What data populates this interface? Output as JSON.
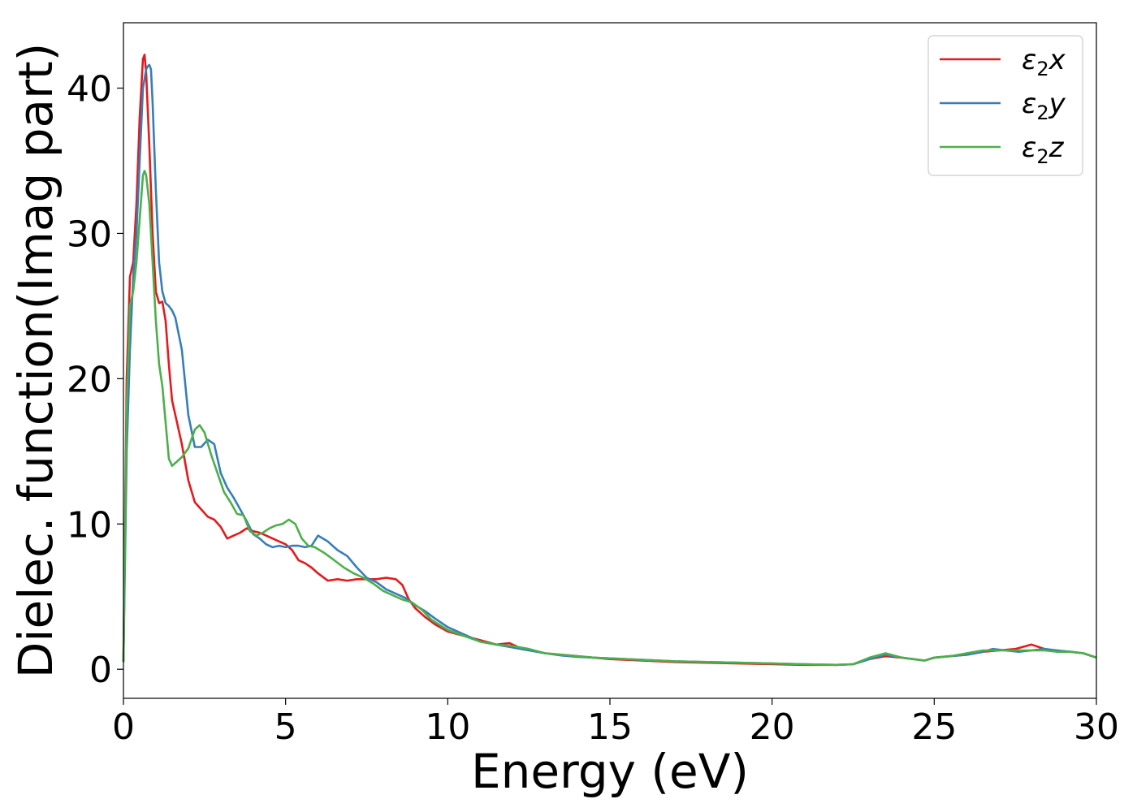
{
  "chart_data": {
    "type": "line",
    "xlabel": "Energy (eV)",
    "ylabel": "Dielec. function(Imag part)",
    "xlim": [
      0,
      30
    ],
    "ylim": [
      -2,
      44.5
    ],
    "xticks": [
      0,
      5,
      10,
      15,
      20,
      25,
      30
    ],
    "yticks": [
      0,
      10,
      20,
      30,
      40
    ],
    "grid": false,
    "legend_position": "top-right",
    "series": [
      {
        "name": "ε₂x",
        "legend": {
          "base": "ε",
          "sub": "2",
          "var": "x"
        },
        "color": "#e41a1c",
        "x": [
          0,
          0.1,
          0.2,
          0.3,
          0.4,
          0.5,
          0.6,
          0.65,
          0.7,
          0.8,
          0.9,
          1.0,
          1.1,
          1.2,
          1.3,
          1.4,
          1.5,
          1.6,
          1.8,
          2.0,
          2.2,
          2.4,
          2.6,
          2.8,
          3.0,
          3.2,
          3.4,
          3.6,
          3.8,
          4.0,
          4.2,
          4.4,
          4.6,
          4.8,
          5.0,
          5.2,
          5.4,
          5.6,
          5.8,
          6.0,
          6.3,
          6.6,
          6.9,
          7.2,
          7.5,
          7.8,
          8.1,
          8.4,
          8.6,
          8.8,
          9.0,
          9.3,
          9.6,
          10.0,
          10.5,
          11.0,
          11.5,
          11.9,
          12.2,
          12.6,
          13.0,
          13.5,
          14.0,
          14.5,
          15.0,
          16.0,
          17.0,
          18.0,
          19.0,
          20.0,
          21.0,
          22.0,
          22.5,
          23.0,
          23.5,
          24.0,
          24.7,
          25.0,
          25.5,
          26.0,
          26.5,
          27.0,
          27.5,
          28.0,
          28.4,
          28.8,
          29.2,
          29.6,
          30.0
        ],
        "values": [
          0.5,
          20,
          27,
          28,
          32,
          38,
          42,
          42.3,
          41,
          36,
          30,
          26,
          25.2,
          25.3,
          24,
          21,
          18.5,
          17.5,
          15.5,
          13,
          11.5,
          11,
          10.5,
          10.3,
          9.8,
          9.0,
          9.2,
          9.4,
          9.7,
          9.5,
          9.4,
          9.2,
          9.0,
          8.8,
          8.6,
          8.2,
          7.5,
          7.3,
          7.0,
          6.6,
          6.1,
          6.2,
          6.1,
          6.2,
          6.2,
          6.2,
          6.3,
          6.2,
          5.8,
          4.8,
          4.2,
          3.6,
          3.1,
          2.6,
          2.3,
          2.0,
          1.7,
          1.8,
          1.5,
          1.3,
          1.1,
          1.0,
          0.9,
          0.8,
          0.7,
          0.6,
          0.5,
          0.45,
          0.4,
          0.35,
          0.3,
          0.3,
          0.35,
          0.7,
          0.9,
          0.8,
          0.6,
          0.8,
          0.9,
          1.0,
          1.2,
          1.3,
          1.4,
          1.7,
          1.4,
          1.2,
          1.2,
          1.1,
          0.8
        ]
      },
      {
        "name": "ε₂y",
        "legend": {
          "base": "ε",
          "sub": "2",
          "var": "y"
        },
        "color": "#377eb8",
        "x": [
          0,
          0.1,
          0.2,
          0.3,
          0.4,
          0.5,
          0.6,
          0.7,
          0.75,
          0.8,
          0.85,
          0.9,
          1.0,
          1.1,
          1.2,
          1.3,
          1.4,
          1.5,
          1.6,
          1.8,
          2.0,
          2.2,
          2.4,
          2.6,
          2.8,
          3.0,
          3.2,
          3.4,
          3.6,
          3.8,
          4.0,
          4.2,
          4.4,
          4.6,
          4.8,
          5.0,
          5.2,
          5.4,
          5.6,
          5.8,
          6.0,
          6.3,
          6.6,
          6.9,
          7.2,
          7.5,
          7.8,
          8.1,
          8.4,
          8.7,
          9.0,
          9.3,
          9.6,
          10.0,
          10.5,
          11.0,
          11.5,
          12.0,
          12.5,
          13.0,
          13.5,
          14.0,
          14.5,
          15.0,
          16.0,
          17.0,
          18.0,
          19.0,
          20.0,
          21.0,
          22.0,
          22.5,
          23.0,
          23.5,
          24.0,
          24.7,
          25.0,
          25.5,
          26.0,
          26.5,
          26.8,
          27.2,
          27.6,
          28.0,
          28.4,
          28.8,
          29.2,
          29.6,
          30.0
        ],
        "values": [
          0.5,
          15,
          22,
          27,
          30,
          35,
          40,
          41.3,
          41.5,
          41.6,
          41.3,
          39,
          33,
          28,
          26,
          25.2,
          25,
          24.7,
          24.2,
          22,
          17.5,
          15.3,
          15.3,
          15.8,
          15.5,
          13.5,
          12.5,
          11.8,
          11.0,
          10.2,
          9.3,
          9.0,
          8.6,
          8.4,
          8.5,
          8.4,
          8.5,
          8.5,
          8.4,
          8.5,
          9.2,
          8.8,
          8.2,
          7.8,
          7.0,
          6.3,
          6.0,
          5.5,
          5.2,
          4.9,
          4.4,
          4.0,
          3.5,
          2.9,
          2.4,
          1.9,
          1.7,
          1.5,
          1.3,
          1.1,
          0.95,
          0.85,
          0.8,
          0.75,
          0.65,
          0.55,
          0.5,
          0.45,
          0.4,
          0.35,
          0.3,
          0.35,
          0.7,
          1.0,
          0.8,
          0.6,
          0.8,
          0.9,
          1.0,
          1.2,
          1.4,
          1.3,
          1.2,
          1.3,
          1.4,
          1.3,
          1.2,
          1.1,
          0.8
        ]
      },
      {
        "name": "ε₂z",
        "legend": {
          "base": "ε",
          "sub": "2",
          "var": "z"
        },
        "color": "#4daf4a",
        "x": [
          0,
          0.1,
          0.2,
          0.3,
          0.4,
          0.5,
          0.6,
          0.65,
          0.7,
          0.8,
          0.9,
          1.0,
          1.1,
          1.2,
          1.3,
          1.4,
          1.5,
          1.6,
          1.8,
          2.0,
          2.2,
          2.35,
          2.5,
          2.7,
          2.9,
          3.1,
          3.3,
          3.5,
          3.7,
          3.9,
          4.1,
          4.3,
          4.5,
          4.7,
          4.9,
          5.1,
          5.3,
          5.5,
          5.7,
          5.9,
          6.2,
          6.5,
          6.8,
          7.1,
          7.4,
          7.7,
          8.0,
          8.3,
          8.6,
          8.9,
          9.2,
          9.5,
          10.0,
          10.5,
          11.0,
          11.5,
          12.0,
          12.5,
          13.0,
          13.5,
          14.0,
          14.5,
          15.0,
          16.0,
          17.0,
          18.0,
          19.0,
          20.0,
          21.0,
          22.0,
          22.5,
          23.0,
          23.5,
          24.0,
          24.7,
          25.0,
          25.5,
          26.0,
          26.5,
          27.0,
          27.5,
          28.0,
          28.4,
          28.8,
          29.2,
          29.6,
          30.0
        ],
        "values": [
          0.5,
          18,
          25,
          26,
          28,
          31,
          34,
          34.3,
          34,
          32,
          28,
          24,
          21,
          19.5,
          17,
          14.5,
          14,
          14.2,
          14.6,
          15.2,
          16.5,
          16.8,
          16.3,
          14.8,
          13.5,
          12.2,
          11.5,
          10.7,
          10.6,
          9.5,
          9.2,
          9.4,
          9.7,
          9.9,
          10.0,
          10.3,
          10.0,
          9.0,
          8.5,
          8.4,
          8.0,
          7.5,
          7.0,
          6.6,
          6.3,
          5.9,
          5.4,
          5.1,
          4.8,
          4.6,
          4.1,
          3.4,
          2.7,
          2.3,
          1.9,
          1.7,
          1.6,
          1.4,
          1.1,
          1.0,
          0.9,
          0.8,
          0.75,
          0.65,
          0.55,
          0.5,
          0.45,
          0.4,
          0.35,
          0.3,
          0.35,
          0.8,
          1.1,
          0.8,
          0.6,
          0.8,
          0.9,
          1.1,
          1.3,
          1.3,
          1.3,
          1.3,
          1.3,
          1.2,
          1.2,
          1.1,
          0.8
        ]
      }
    ]
  }
}
